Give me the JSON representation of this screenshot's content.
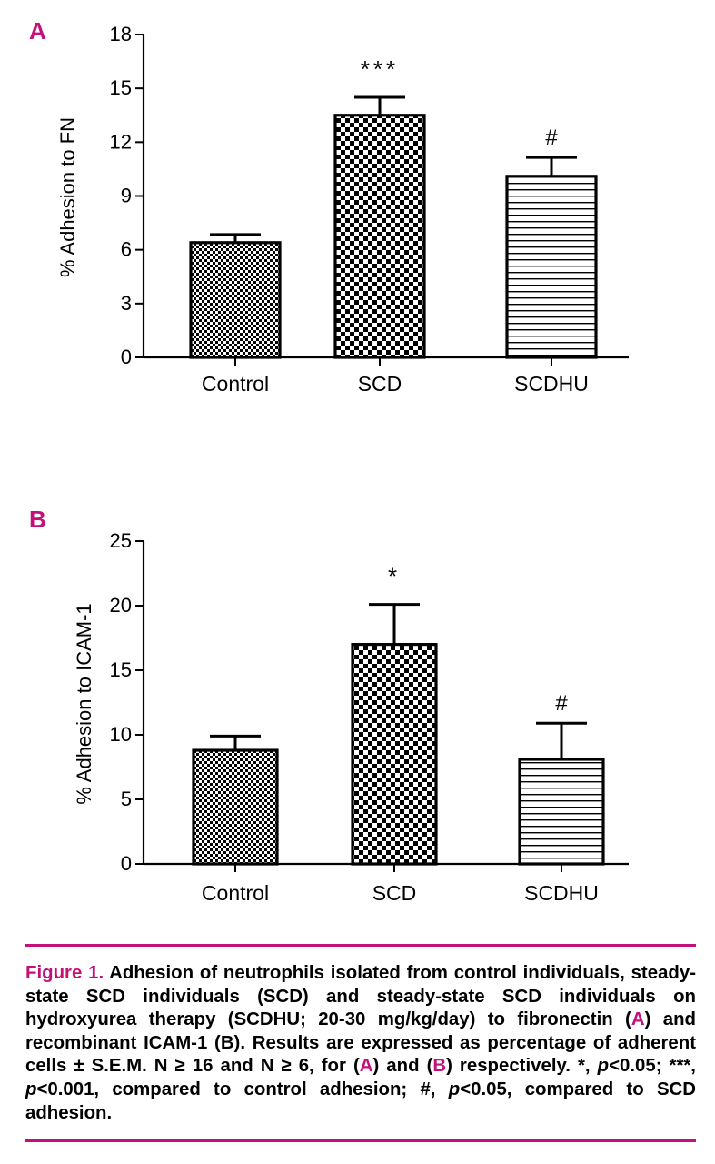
{
  "colors": {
    "accent": "#c2117a",
    "ink": "#000000"
  },
  "chart_data": [
    {
      "panel": "A",
      "type": "bar",
      "title": "",
      "ylabel": "% Adhesion to FN",
      "xlabel": "",
      "ylim": [
        0,
        18
      ],
      "yticks": [
        0,
        3,
        6,
        9,
        12,
        15,
        18
      ],
      "categories": [
        "Control",
        "SCD",
        "SCDHU"
      ],
      "values": [
        6.4,
        13.5,
        10.1
      ],
      "errors": [
        0.45,
        1.0,
        1.05
      ],
      "annotations": [
        "",
        "***",
        "#"
      ],
      "patterns": [
        "fine-check",
        "coarse-check",
        "stripes"
      ]
    },
    {
      "panel": "B",
      "type": "bar",
      "title": "",
      "ylabel": "% Adhesion to ICAM-1",
      "xlabel": "",
      "ylim": [
        0,
        25
      ],
      "yticks": [
        0,
        5,
        10,
        15,
        20,
        25
      ],
      "categories": [
        "Control",
        "SCD",
        "SCDHU"
      ],
      "values": [
        8.8,
        17.0,
        8.1
      ],
      "errors": [
        1.1,
        3.1,
        2.8
      ],
      "annotations": [
        "",
        "*",
        "#"
      ],
      "patterns": [
        "fine-check",
        "coarse-check",
        "stripes"
      ]
    }
  ],
  "caption": {
    "label": "Figure 1.",
    "t1": " Adhesion of neutrophils isolated from control individuals, steady-state SCD individuals (SCD) and steady-state SCD individuals on hydroxyurea therapy (SCDHU; 20-30 mg/kg/day) to fibronectin (",
    "a1": "A",
    "t2": ") and recombinant ICAM-1 (B). Results are expressed as percentage of adherent cells ± S.E.M. N ≥ 16 and N ≥ 6, for (",
    "a2": "A",
    "t3": ") and (",
    "b1": "B",
    "t4": ") respectively. *, ",
    "p1": "p",
    "t5": "<0.05; ***, ",
    "p2": "p",
    "t6": "<0.001, compared to control adhesion; #, ",
    "p3": "p",
    "t7": "<0.05, compared to SCD adhesion."
  }
}
